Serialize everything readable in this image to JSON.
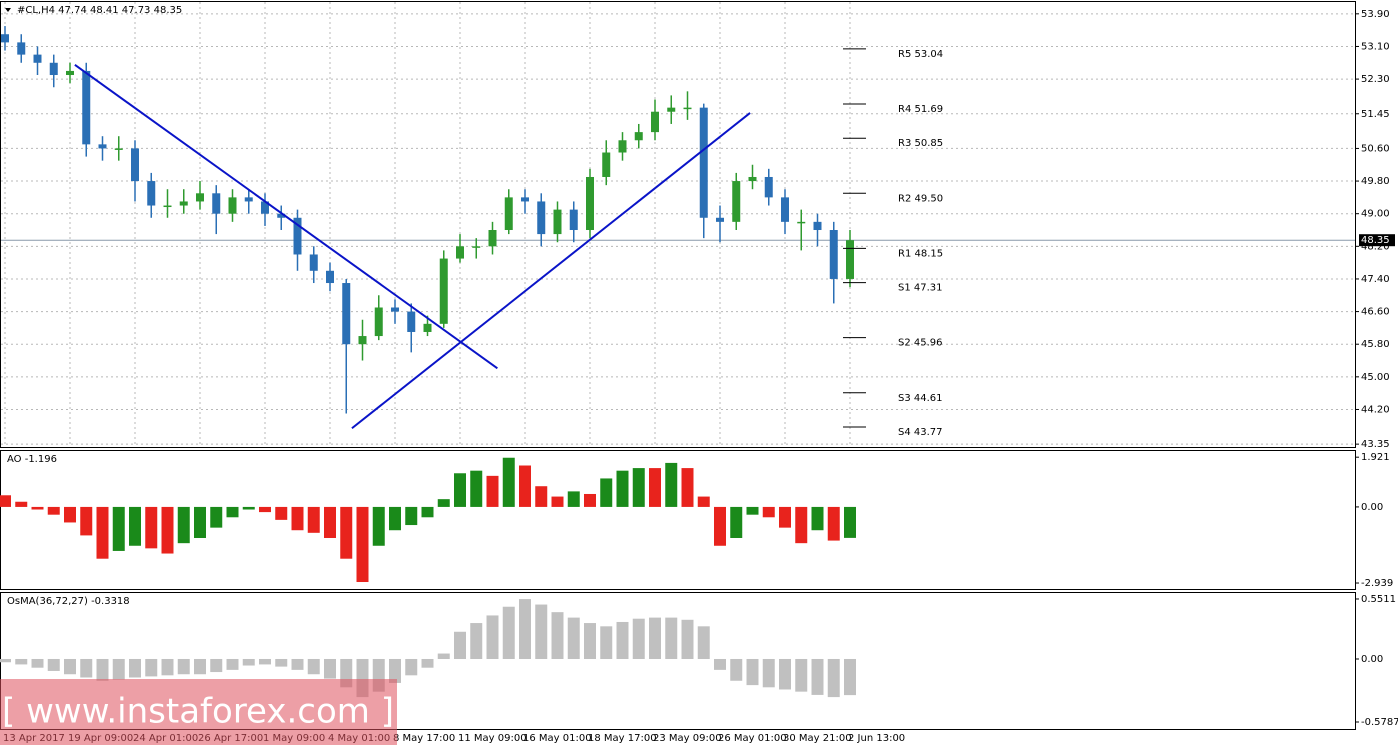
{
  "chart_data": [
    {
      "type": "candlestick",
      "title": "#CL,H4  47.74 48.41 47.73 48.35",
      "categories": [
        "13 Apr 2017",
        null,
        null,
        null,
        "19 Apr 09:00",
        null,
        null,
        null,
        "24 Apr 01:00",
        null,
        null,
        null,
        "26 Apr 17:00",
        null,
        null,
        null,
        "1 May 09:00",
        null,
        null,
        null,
        "4 May 01:00",
        null,
        null,
        null,
        "8 May 17:00",
        null,
        null,
        null,
        "11 May 09:00",
        null,
        null,
        null,
        "16 May 01:00",
        null,
        null,
        null,
        "18 May 17:00",
        null,
        null,
        null,
        "23 May 09:00",
        null,
        null,
        null,
        "26 May 01:00",
        null,
        null,
        null,
        "30 May 21:00",
        null,
        null,
        null,
        "2 Jun 13:00"
      ],
      "open": [
        53.4,
        53.2,
        52.9,
        52.7,
        52.4,
        52.5,
        50.7,
        50.6,
        50.6,
        49.8,
        49.2,
        49.2,
        49.3,
        49.5,
        49.0,
        49.4,
        49.3,
        49.0,
        48.9,
        48.0,
        47.6,
        47.3,
        45.8,
        46.0,
        46.7,
        46.6,
        46.1,
        46.3,
        47.9,
        48.2,
        48.2,
        48.6,
        49.4,
        49.3,
        48.5,
        49.1,
        48.6,
        49.9,
        50.5,
        50.8,
        51.0,
        51.5,
        51.6,
        51.6,
        48.9,
        48.8,
        49.8,
        49.9,
        49.4,
        48.8,
        48.8,
        48.6,
        47.4
      ],
      "high": [
        53.6,
        53.4,
        53.1,
        52.9,
        52.7,
        52.7,
        50.9,
        50.9,
        50.8,
        50.0,
        49.6,
        49.6,
        49.8,
        49.7,
        49.6,
        49.6,
        49.5,
        49.2,
        49.1,
        48.2,
        47.8,
        47.4,
        46.4,
        47.0,
        46.9,
        46.8,
        46.5,
        48.1,
        48.5,
        48.4,
        48.8,
        49.6,
        49.6,
        49.5,
        49.3,
        49.3,
        50.1,
        50.8,
        51.0,
        51.2,
        51.8,
        51.9,
        52.0,
        51.7,
        49.2,
        50.0,
        50.2,
        50.1,
        49.6,
        49.1,
        49.0,
        48.8,
        48.6
      ],
      "low": [
        53.0,
        52.7,
        52.4,
        52.1,
        52.2,
        50.4,
        50.3,
        50.3,
        49.3,
        48.9,
        48.9,
        49.0,
        49.1,
        48.5,
        48.8,
        49.0,
        48.7,
        48.6,
        47.6,
        47.3,
        47.1,
        44.1,
        45.4,
        45.9,
        46.3,
        45.6,
        46.0,
        46.2,
        47.8,
        47.9,
        48.0,
        48.5,
        49.0,
        48.2,
        48.3,
        48.3,
        48.4,
        49.7,
        50.3,
        50.6,
        50.8,
        51.2,
        51.3,
        48.4,
        48.3,
        48.6,
        49.6,
        49.2,
        48.5,
        48.1,
        48.2,
        46.8,
        47.2
      ],
      "close": [
        53.2,
        52.9,
        52.7,
        52.4,
        52.5,
        50.7,
        50.6,
        50.6,
        49.8,
        49.2,
        49.2,
        49.3,
        49.5,
        49.0,
        49.4,
        49.3,
        49.0,
        48.9,
        48.0,
        47.6,
        47.3,
        45.8,
        46.0,
        46.7,
        46.6,
        46.1,
        46.3,
        47.9,
        48.2,
        48.2,
        48.6,
        49.4,
        49.3,
        48.5,
        49.1,
        48.6,
        49.9,
        50.5,
        50.8,
        51.0,
        51.5,
        51.6,
        51.6,
        48.9,
        48.8,
        49.8,
        49.9,
        49.4,
        48.8,
        48.8,
        48.6,
        47.4,
        48.35
      ],
      "up_color": "#2f9a2f",
      "down_color": "#2a6fb5",
      "ylim": [
        43.28,
        54.19
      ],
      "yticks": [
        {
          "value": 53.9,
          "label": "53.90"
        },
        {
          "value": 53.1,
          "label": "53.10"
        },
        {
          "value": 52.3,
          "label": "52.30"
        },
        51.45,
        {
          "value": 50.6,
          "label": "50.60"
        },
        {
          "value": 49.8,
          "label": "49.80"
        },
        {
          "value": 49,
          "label": "49.00"
        },
        {
          "value": 48.2,
          "label": "48.20"
        },
        {
          "value": 47.4,
          "label": "47.40"
        },
        {
          "value": 46.6,
          "label": "46.60"
        },
        {
          "value": 45.8,
          "label": "45.80"
        },
        {
          "value": 45,
          "label": "45.00"
        },
        {
          "value": 44.2,
          "label": "44.20"
        },
        43.35
      ],
      "grid": true,
      "last_price": {
        "value": 48.35,
        "label": "48.35"
      },
      "trendlines": [
        {
          "x": [
            4.3,
            30.3
          ],
          "y": [
            52.65,
            45.21
          ]
        },
        {
          "x": [
            21.35,
            45.85
          ],
          "y": [
            43.74,
            51.47
          ]
        }
      ],
      "trendline_color": "#0a14c8",
      "levels": [
        {
          "label": "R5 53.04",
          "value": 53.04
        },
        {
          "label": "R4 51.69",
          "value": 51.69
        },
        {
          "label": "R3 50.85",
          "value": 50.85
        },
        {
          "label": "R2 49.50",
          "value": 49.5
        },
        {
          "label": "R1 48.15",
          "value": 48.15
        },
        {
          "label": "S1 47.31",
          "value": 47.31
        },
        {
          "label": "S2 45.96",
          "value": 45.96
        },
        {
          "label": "S3 44.61",
          "value": 44.61
        },
        {
          "label": "S4 43.77",
          "value": 43.77
        }
      ]
    },
    {
      "type": "bar",
      "title": "AO -1.196",
      "values": [
        0.45,
        0.2,
        -0.1,
        -0.3,
        -0.6,
        -1.1,
        -2.0,
        -1.7,
        -1.5,
        -1.6,
        -1.8,
        -1.4,
        -1.2,
        -0.8,
        -0.4,
        -0.1,
        -0.2,
        -0.5,
        -0.9,
        -1.0,
        -1.2,
        -2.0,
        -2.9,
        -1.5,
        -0.9,
        -0.7,
        -0.4,
        0.3,
        1.3,
        1.4,
        1.2,
        1.9,
        1.6,
        0.8,
        0.4,
        0.6,
        0.5,
        1.1,
        1.4,
        1.5,
        1.5,
        1.7,
        1.5,
        0.4,
        -1.5,
        -1.2,
        -0.3,
        -0.4,
        -0.8,
        -1.4,
        -0.9,
        -1.3,
        -1.196
      ],
      "up_color": "#1a8a1a",
      "down_color": "#e8231d",
      "ylim": [
        -3.17,
        2.16
      ],
      "yticks": [
        1.921,
        {
          "value": 0,
          "label": "0.00"
        },
        -2.939
      ]
    },
    {
      "type": "bar",
      "title": "OsMA(36,72,27) -0.3318",
      "values": [
        -0.03,
        -0.05,
        -0.08,
        -0.11,
        -0.14,
        -0.17,
        -0.2,
        -0.19,
        -0.17,
        -0.16,
        -0.15,
        -0.14,
        -0.14,
        -0.12,
        -0.1,
        -0.06,
        -0.05,
        -0.07,
        -0.1,
        -0.14,
        -0.18,
        -0.26,
        -0.35,
        -0.3,
        -0.22,
        -0.15,
        -0.08,
        0.05,
        0.25,
        0.33,
        0.4,
        0.48,
        0.55,
        0.5,
        0.43,
        0.38,
        0.33,
        0.3,
        0.34,
        0.37,
        0.38,
        0.38,
        0.36,
        0.3,
        -0.1,
        -0.2,
        -0.24,
        -0.26,
        -0.28,
        -0.3,
        -0.33,
        -0.35,
        -0.3318
      ],
      "color": "#c0c0c0",
      "ylim": [
        -0.643,
        0.606
      ],
      "yticks": [
        0.5511,
        {
          "value": 0,
          "label": "0.00"
        },
        -0.5787
      ]
    }
  ],
  "watermark": "[ www.instaforex.com ]"
}
